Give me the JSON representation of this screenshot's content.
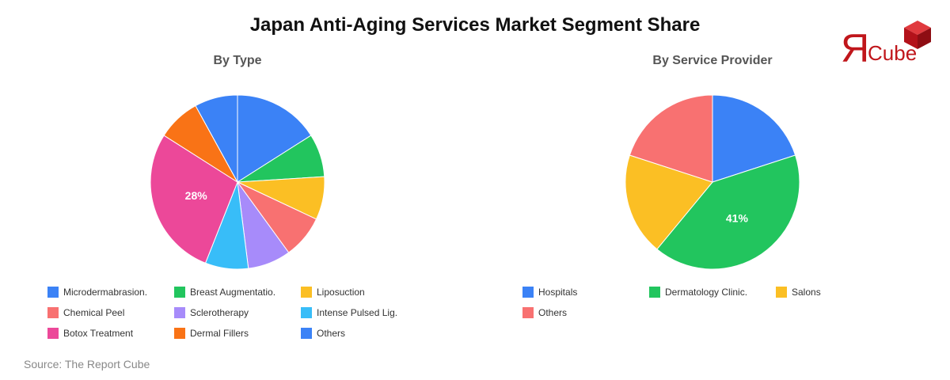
{
  "title": "Japan Anti-Aging Services Market Segment Share",
  "logo": {
    "mark": "Я",
    "text": "Cube",
    "color": "#c0161b"
  },
  "source": "Source: The Report Cube",
  "chart_data": [
    {
      "type": "pie",
      "title": "By Type",
      "legend_position": "bottom",
      "slices": [
        {
          "label": "Microdermabrasion.",
          "value": 16,
          "color": "#3b82f6"
        },
        {
          "label": "Breast Augmentatio.",
          "value": 8,
          "color": "#22c55e"
        },
        {
          "label": "Liposuction",
          "value": 8,
          "color": "#fbbf24"
        },
        {
          "label": "Chemical Peel",
          "value": 8,
          "color": "#f87171"
        },
        {
          "label": "Sclerotherapy",
          "value": 8,
          "color": "#a78bfa"
        },
        {
          "label": "Intense Pulsed Lig.",
          "value": 8,
          "color": "#38bdf8"
        },
        {
          "label": "Botox Treatment",
          "value": 28,
          "color": "#ec4899",
          "data_label": "28%"
        },
        {
          "label": "Dermal Fillers",
          "value": 8,
          "color": "#f97316"
        },
        {
          "label": "Others",
          "value": 8,
          "color": "#3b82f6"
        }
      ]
    },
    {
      "type": "pie",
      "title": "By Service Provider",
      "legend_position": "bottom",
      "slices": [
        {
          "label": "Hospitals",
          "value": 20,
          "color": "#3b82f6"
        },
        {
          "label": "Dermatology Clinic.",
          "value": 41,
          "color": "#22c55e",
          "data_label": "41%"
        },
        {
          "label": "Salons",
          "value": 19,
          "color": "#fbbf24"
        },
        {
          "label": "Others",
          "value": 20,
          "color": "#f87171"
        }
      ]
    }
  ]
}
